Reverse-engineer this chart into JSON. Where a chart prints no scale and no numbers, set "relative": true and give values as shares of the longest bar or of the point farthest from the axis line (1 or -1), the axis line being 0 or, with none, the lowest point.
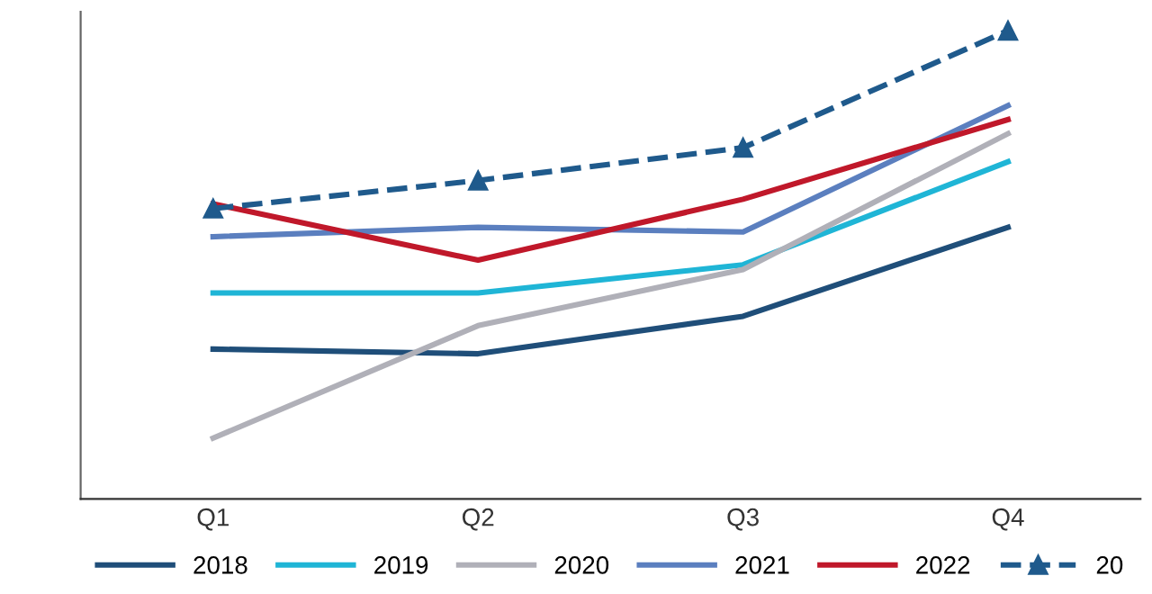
{
  "chart_data": {
    "type": "line",
    "relative": true,
    "categories": [
      "Q1",
      "Q2",
      "Q3",
      "Q4"
    ],
    "legend": "bottom",
    "grid": false,
    "series": [
      {
        "name": "2018",
        "color": "#1f4e79",
        "values": [
          0.32,
          0.31,
          0.39,
          0.58
        ]
      },
      {
        "name": "2019",
        "color": "#1fb5d6",
        "values": [
          0.44,
          0.44,
          0.5,
          0.72
        ]
      },
      {
        "name": "2020",
        "color": "#b0b0b8",
        "values": [
          0.13,
          0.37,
          0.49,
          0.78
        ]
      },
      {
        "name": "2021",
        "color": "#5b7fbf",
        "values": [
          0.56,
          0.58,
          0.57,
          0.84
        ]
      },
      {
        "name": "2022",
        "color": "#c0182a",
        "values": [
          0.63,
          0.51,
          0.64,
          0.81
        ]
      },
      {
        "name": "20",
        "color": "#1f5a8c",
        "values": [
          0.62,
          0.68,
          0.75,
          1
        ],
        "line_style": "dashed",
        "marker": "triangle"
      }
    ]
  }
}
